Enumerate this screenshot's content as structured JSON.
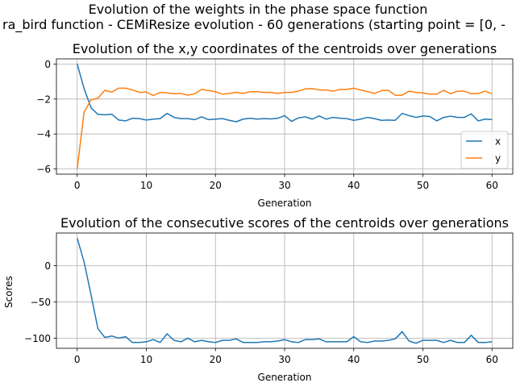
{
  "figure": {
    "suptitle_line1": "Evolution of the weights in the phase space  function",
    "suptitle_line2": "ra_bird function - CEMiResize evolution - 60 generations (starting point = [0, -"
  },
  "chart_data": [
    {
      "type": "line",
      "title": "Evolution of the x,y coordinates of the centroids over generations",
      "xlabel": "Generation",
      "ylabel": "",
      "xlim": [
        -3,
        63
      ],
      "ylim": [
        -6.3,
        0.3
      ],
      "xticks": [
        0,
        10,
        20,
        30,
        40,
        50,
        60
      ],
      "yticks": [
        0,
        -2,
        -4,
        -6
      ],
      "grid": true,
      "legend": "right",
      "x": [
        0,
        1,
        2,
        3,
        4,
        5,
        6,
        7,
        8,
        9,
        10,
        11,
        12,
        13,
        14,
        15,
        16,
        17,
        18,
        19,
        20,
        21,
        22,
        23,
        24,
        25,
        26,
        27,
        28,
        29,
        30,
        31,
        32,
        33,
        34,
        35,
        36,
        37,
        38,
        39,
        40,
        41,
        42,
        43,
        44,
        45,
        46,
        47,
        48,
        49,
        50,
        51,
        52,
        53,
        54,
        55,
        56,
        57,
        58,
        59,
        60
      ],
      "series": [
        {
          "name": "x",
          "color": "#1f77b4",
          "values": [
            0,
            -1.4,
            -2.5,
            -2.88,
            -2.9,
            -2.87,
            -3.2,
            -3.25,
            -3.1,
            -3.12,
            -3.2,
            -3.15,
            -3.12,
            -2.82,
            -3.05,
            -3.12,
            -3.12,
            -3.18,
            -3.02,
            -3.18,
            -3.15,
            -3.12,
            -3.22,
            -3.3,
            -3.15,
            -3.1,
            -3.15,
            -3.12,
            -3.14,
            -3.1,
            -2.95,
            -3.28,
            -3.08,
            -3.02,
            -3.15,
            -2.97,
            -3.15,
            -3.05,
            -3.1,
            -3.12,
            -3.22,
            -3.15,
            -3.05,
            -3.12,
            -3.22,
            -3.2,
            -3.22,
            -2.82,
            -2.95,
            -3.05,
            -2.97,
            -3.0,
            -3.25,
            -3.05,
            -2.98,
            -3.05,
            -3.05,
            -2.85,
            -3.25,
            -3.15,
            -3.18
          ]
        },
        {
          "name": "y",
          "color": "#ff7f0e",
          "values": [
            -6,
            -2.75,
            -2.05,
            -1.95,
            -1.5,
            -1.6,
            -1.38,
            -1.38,
            -1.48,
            -1.62,
            -1.6,
            -1.8,
            -1.62,
            -1.65,
            -1.7,
            -1.68,
            -1.78,
            -1.7,
            -1.45,
            -1.52,
            -1.58,
            -1.72,
            -1.68,
            -1.62,
            -1.68,
            -1.58,
            -1.58,
            -1.62,
            -1.62,
            -1.68,
            -1.62,
            -1.62,
            -1.55,
            -1.42,
            -1.4,
            -1.48,
            -1.48,
            -1.55,
            -1.45,
            -1.45,
            -1.38,
            -1.48,
            -1.58,
            -1.68,
            -1.52,
            -1.5,
            -1.78,
            -1.78,
            -1.55,
            -1.62,
            -1.65,
            -1.72,
            -1.72,
            -1.5,
            -1.7,
            -1.55,
            -1.55,
            -1.7,
            -1.68,
            -1.55,
            -1.7
          ]
        }
      ]
    },
    {
      "type": "line",
      "title": "Evolution of the consecutive scores of the centroids over generations",
      "xlabel": "Generation",
      "ylabel": "Scores",
      "xlim": [
        -3,
        63
      ],
      "ylim": [
        -114,
        45
      ],
      "xticks": [
        0,
        10,
        20,
        30,
        40,
        50,
        60
      ],
      "yticks": [
        0,
        -50,
        -100
      ],
      "grid": true,
      "x": [
        0,
        1,
        2,
        3,
        4,
        5,
        6,
        7,
        8,
        9,
        10,
        11,
        12,
        13,
        14,
        15,
        16,
        17,
        18,
        19,
        20,
        21,
        22,
        23,
        24,
        25,
        26,
        27,
        28,
        29,
        30,
        31,
        32,
        33,
        34,
        35,
        36,
        37,
        38,
        39,
        40,
        41,
        42,
        43,
        44,
        45,
        46,
        47,
        48,
        49,
        50,
        51,
        52,
        53,
        54,
        55,
        56,
        57,
        58,
        59,
        60
      ],
      "series": [
        {
          "color": "#1f77b4",
          "values": [
            38,
            5,
            -40,
            -87,
            -99,
            -97,
            -100,
            -98,
            -106,
            -106,
            -105,
            -102,
            -106,
            -94,
            -103,
            -105,
            -100,
            -105,
            -103,
            -105,
            -106,
            -103,
            -103,
            -101,
            -106,
            -106,
            -106,
            -105,
            -105,
            -104,
            -102,
            -105,
            -106,
            -102,
            -102,
            -101,
            -105,
            -105,
            -105,
            -105,
            -98,
            -105,
            -106,
            -104,
            -104,
            -103,
            -101,
            -91,
            -104,
            -107,
            -103,
            -103,
            -103,
            -106,
            -103,
            -106,
            -106,
            -96,
            -106,
            -106,
            -105
          ]
        }
      ]
    }
  ]
}
